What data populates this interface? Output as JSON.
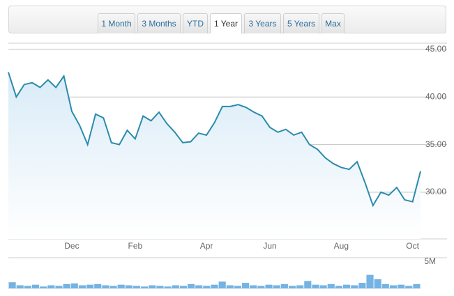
{
  "range_tabs": {
    "options": [
      "1 Month",
      "3 Months",
      "YTD",
      "1 Year",
      "3 Years",
      "5 Years",
      "Max"
    ],
    "selected": 3
  },
  "chart_data": [
    {
      "type": "line",
      "color": "#2b8bab",
      "grid": true,
      "categories": [
        null,
        null,
        null,
        null,
        null,
        null,
        null,
        null,
        "Dec",
        null,
        null,
        null,
        null,
        null,
        null,
        null,
        "Feb",
        null,
        null,
        null,
        null,
        null,
        null,
        null,
        null,
        "Apr",
        null,
        null,
        null,
        null,
        null,
        null,
        null,
        "Jun",
        null,
        null,
        null,
        null,
        null,
        null,
        null,
        null,
        "Aug",
        null,
        null,
        null,
        null,
        null,
        null,
        null,
        null,
        "Oct",
        null
      ],
      "values": [
        42.6,
        40.0,
        41.3,
        41.5,
        41.0,
        41.8,
        41.0,
        42.2,
        38.5,
        37.0,
        35.0,
        38.2,
        37.8,
        35.2,
        35.0,
        36.5,
        35.6,
        38.0,
        37.5,
        38.4,
        37.2,
        36.3,
        35.2,
        35.3,
        36.2,
        36.0,
        37.3,
        39.0,
        39.0,
        39.2,
        38.9,
        38.4,
        38.0,
        36.8,
        36.3,
        36.6,
        36.0,
        36.3,
        35.0,
        34.5,
        33.6,
        33.0,
        32.6,
        32.4,
        33.2,
        31.0,
        28.6,
        30.0,
        29.7,
        30.5,
        29.2,
        29.0,
        32.2
      ],
      "ylim": [
        25.1,
        45.5
      ],
      "yticks": [
        {
          "value": 30,
          "label": "30.00"
        },
        {
          "value": 35,
          "label": "35.00"
        },
        {
          "value": 40,
          "label": "40.00"
        },
        {
          "value": 45,
          "label": "45.00"
        }
      ]
    },
    {
      "type": "bar",
      "color": "#74b3e3",
      "values": [
        1000000,
        500000,
        400000,
        600000,
        300000,
        500000,
        400000,
        700000,
        800000,
        500000,
        600000,
        700000,
        500000,
        400000,
        600000,
        500000,
        400000,
        300000,
        500000,
        400000,
        300000,
        500000,
        400000,
        700000,
        500000,
        400000,
        600000,
        1100000,
        500000,
        400000,
        900000,
        500000,
        400000,
        600000,
        500000,
        700000,
        400000,
        500000,
        1200000,
        600000,
        500000,
        700000,
        400000,
        600000,
        500000,
        900000,
        2200000,
        1500000,
        700000,
        500000,
        600000,
        400000,
        700000
      ],
      "ylim": [
        0,
        5000000
      ],
      "yticks": [
        {
          "value": 5000000,
          "label": "5M"
        }
      ]
    }
  ]
}
